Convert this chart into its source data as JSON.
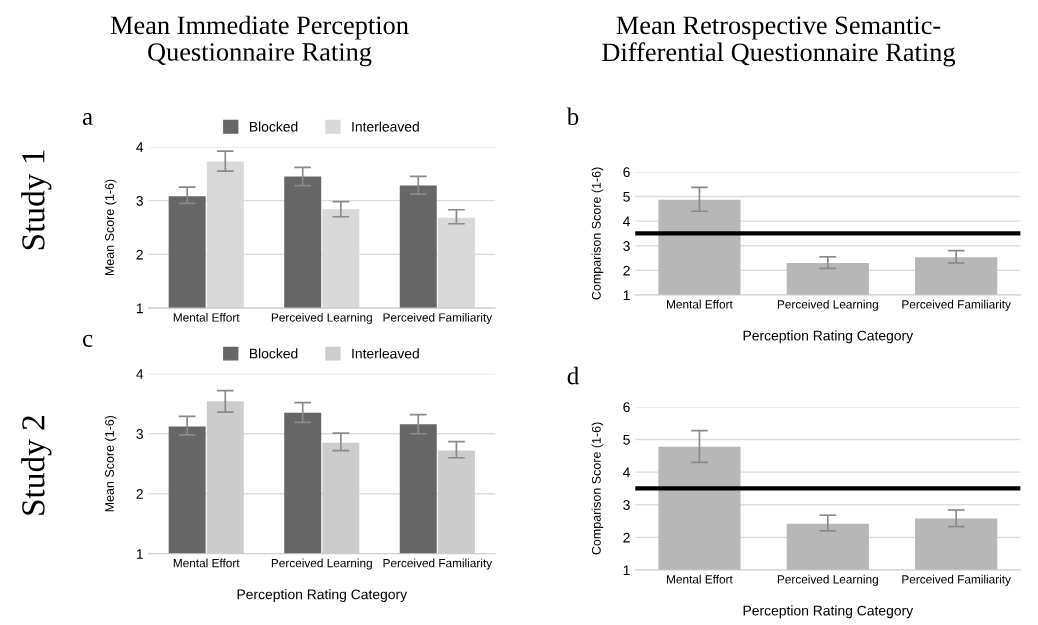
{
  "chart_data": [
    {
      "type": "bar",
      "title": "Mean Immediate Perception\nQuestionnaire Rating",
      "annotations": [
        "a",
        "Study 1"
      ],
      "ylabel": "Mean Score (1-6)",
      "categories": [
        "Mental Effort",
        "Perceived Learning",
        "Perceived Familiarity"
      ],
      "series": [
        {
          "name": "Blocked",
          "color": "#666666",
          "values": [
            3.08,
            3.45,
            3.28
          ],
          "errors": [
            [
              2.95,
              3.25
            ],
            [
              3.28,
              3.62
            ],
            [
              3.12,
              3.45
            ]
          ]
        },
        {
          "name": "Interleaved",
          "color": "#d9d9d9",
          "values": [
            3.73,
            2.84,
            2.68
          ],
          "errors": [
            [
              3.55,
              3.92
            ],
            [
              2.7,
              2.98
            ],
            [
              2.57,
              2.83
            ]
          ]
        }
      ],
      "ylim": [
        1,
        4
      ],
      "yticks": [
        1,
        2,
        3,
        4
      ],
      "grid": "y",
      "legend": "top"
    },
    {
      "type": "bar",
      "title": "Mean Retrospective Semantic-\nDifferential Questionnaire Rating",
      "annotations": [
        "b"
      ],
      "xlabel": "Perception Rating Category",
      "ylabel": "Comparison Score (1-6)",
      "categories": [
        "Mental Effort",
        "Perceived Learning",
        "Perceived Familiarity"
      ],
      "series": [
        {
          "color": "#b7b7b7",
          "values": [
            4.87,
            2.3,
            2.53
          ],
          "errors": [
            [
              4.4,
              5.37
            ],
            [
              2.08,
              2.55
            ],
            [
              2.3,
              2.8
            ]
          ]
        }
      ],
      "ylim": [
        1,
        6
      ],
      "yticks": [
        1,
        2,
        3,
        4,
        5,
        6
      ],
      "grid": "y",
      "ref_lines": [
        {
          "axis": "y",
          "value": 3.5,
          "color": "#000000"
        }
      ]
    },
    {
      "type": "bar",
      "annotations": [
        "c",
        "Study 2"
      ],
      "xlabel": "Perception Rating Category",
      "ylabel": "Mean Score (1-6)",
      "categories": [
        "Mental Effort",
        "Perceived Learning",
        "Perceived Familiarity"
      ],
      "series": [
        {
          "name": "Blocked",
          "color": "#666666",
          "values": [
            3.12,
            3.35,
            3.16
          ],
          "errors": [
            [
              2.98,
              3.29
            ],
            [
              3.19,
              3.52
            ],
            [
              3.0,
              3.32
            ]
          ]
        },
        {
          "name": "Interleaved",
          "color": "#cccccc",
          "values": [
            3.54,
            2.85,
            2.72
          ],
          "errors": [
            [
              3.36,
              3.72
            ],
            [
              2.72,
              3.01
            ],
            [
              2.6,
              2.87
            ]
          ]
        }
      ],
      "ylim": [
        1,
        4
      ],
      "yticks": [
        1,
        2,
        3,
        4
      ],
      "grid": "y",
      "legend": "top"
    },
    {
      "type": "bar",
      "annotations": [
        "d"
      ],
      "xlabel": "Perception Rating Category",
      "ylabel": "Comparison Score (1-6)",
      "categories": [
        "Mental Effort",
        "Perceived Learning",
        "Perceived Familiarity"
      ],
      "series": [
        {
          "color": "#b7b7b7",
          "values": [
            4.78,
            2.42,
            2.58
          ],
          "errors": [
            [
              4.3,
              5.27
            ],
            [
              2.2,
              2.68
            ],
            [
              2.33,
              2.84
            ]
          ]
        }
      ],
      "ylim": [
        1,
        6
      ],
      "yticks": [
        1,
        2,
        3,
        4,
        5,
        6
      ],
      "grid": "y",
      "ref_lines": [
        {
          "axis": "y",
          "value": 3.5,
          "color": "#000000"
        }
      ]
    }
  ]
}
